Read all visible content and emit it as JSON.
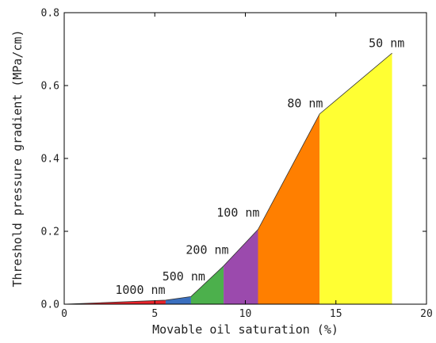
{
  "chart_data": {
    "type": "area",
    "title": "",
    "xlabel": "Movable oil saturation (%)",
    "ylabel": "Threshold pressure gradient (MPa/cm)",
    "xlim": [
      0,
      20
    ],
    "ylim": [
      0,
      0.8
    ],
    "xticks": [
      0,
      5,
      10,
      15,
      20
    ],
    "yticks": [
      0.0,
      0.2,
      0.4,
      0.6,
      0.8
    ],
    "x_tick_labels": [
      "0",
      "5",
      "10",
      "15",
      "20"
    ],
    "y_tick_labels": [
      "0.0",
      "0.2",
      "0.4",
      "0.6",
      "0.8"
    ],
    "grid": false,
    "curve": {
      "x": [
        0,
        5.6,
        7.0,
        8.8,
        10.7,
        14.1,
        18.1
      ],
      "y": [
        0,
        0.011,
        0.021,
        0.105,
        0.205,
        0.522,
        0.689
      ]
    },
    "regions": [
      {
        "label": "1000 nm",
        "x_start": 0,
        "x_end": 5.6,
        "color": "#e8232a",
        "label_x": 4.2,
        "label_y": 0.028
      },
      {
        "label": "500 nm",
        "x_start": 5.6,
        "x_end": 7.0,
        "color": "#3a6fbf",
        "label_x": 6.6,
        "label_y": 0.065
      },
      {
        "label": "200 nm",
        "x_start": 7.0,
        "x_end": 8.8,
        "color": "#4cb04c",
        "label_x": 7.9,
        "label_y": 0.138
      },
      {
        "label": "100 nm",
        "x_start": 8.8,
        "x_end": 10.7,
        "color": "#9b4aad",
        "label_x": 9.6,
        "label_y": 0.24
      },
      {
        "label": "80 nm",
        "x_start": 10.7,
        "x_end": 14.1,
        "color": "#ff7f00",
        "label_x": 13.3,
        "label_y": 0.54
      },
      {
        "label": "50 nm",
        "x_start": 14.1,
        "x_end": 18.1,
        "color": "#ffff33",
        "label_x": 17.8,
        "label_y": 0.705
      }
    ]
  }
}
